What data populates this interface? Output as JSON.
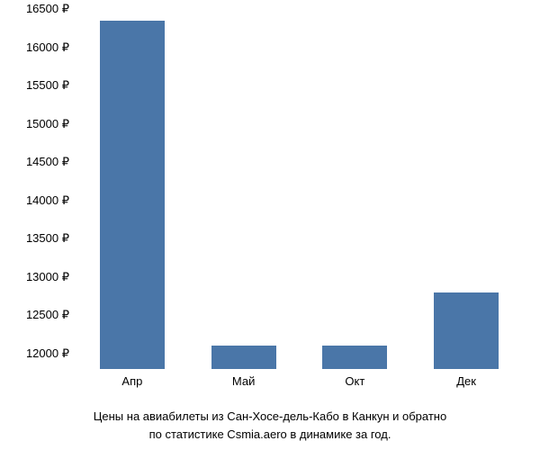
{
  "chart": {
    "type": "bar",
    "categories": [
      "Апр",
      "Май",
      "Окт",
      "Дек"
    ],
    "values": [
      16350,
      12100,
      12100,
      12800
    ],
    "bar_color": "#4a76a8",
    "background_color": "#ffffff",
    "ylim": [
      11800,
      16500
    ],
    "yticks": [
      12000,
      12500,
      13000,
      13500,
      14000,
      14500,
      15000,
      15500,
      16000,
      16500
    ],
    "ytick_labels": [
      "12000 ₽",
      "12500 ₽",
      "13000 ₽",
      "13500 ₽",
      "14000 ₽",
      "14500 ₽",
      "15000 ₽",
      "15500 ₽",
      "16000 ₽",
      "16500 ₽"
    ],
    "bar_width": 0.58,
    "tick_fontsize": 13,
    "tick_color": "#000000",
    "caption_line1": "Цены на авиабилеты из Сан-Хосе-дель-Кабо в Канкун и обратно",
    "caption_line2": "по статистике Csmia.aero в динамике за год.",
    "caption_fontsize": 13,
    "caption_color": "#000000"
  }
}
